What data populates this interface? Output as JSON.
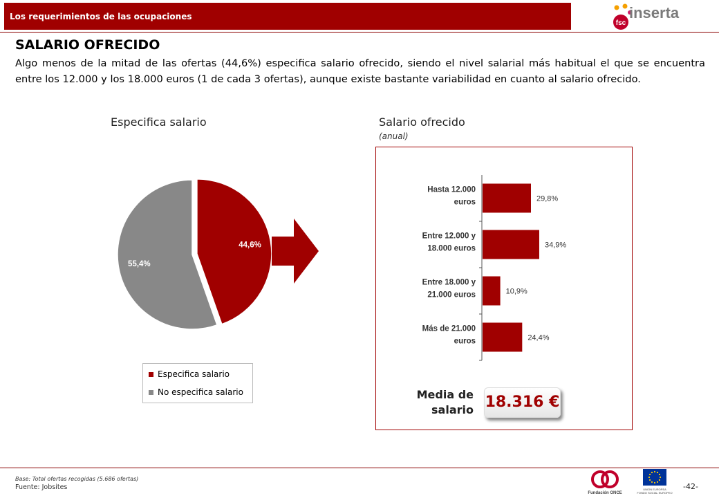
{
  "header": {
    "section_title": "Los requerimientos de las ocupaciones",
    "logo_text": "inserta",
    "logo_badge": "fsc"
  },
  "main": {
    "title": "SALARIO OFRECIDO",
    "paragraph": "Algo menos de la mitad de las ofertas (44,6%) especifica salario ofrecido, siendo el nivel salarial más habitual el que se encuentra entre los 12.000 y los 18.000 euros (1 de cada 3 ofertas), aunque existe bastante variabilidad en cuanto al salario ofrecido."
  },
  "summary": {
    "media_label_1": "Media de",
    "media_label_2": "salario",
    "media_value": "18.316 €"
  },
  "colors": {
    "primary": "#a00000",
    "grey": "#888888"
  },
  "chart_data": [
    {
      "type": "pie",
      "title": "Especifica salario",
      "slices": [
        {
          "label": "Especifica salario",
          "value": 44.6,
          "display": "44,6%",
          "color": "#a00000"
        },
        {
          "label": "No especifica salario",
          "value": 55.4,
          "display": "55,4%",
          "color": "#888888"
        }
      ],
      "legend_placement": "bottom"
    },
    {
      "type": "bar",
      "orientation": "horizontal",
      "title": "Salario ofrecido",
      "subtitle": "(anual)",
      "categories": [
        [
          "Hasta 12.000",
          "euros"
        ],
        [
          "Entre 12.000 y",
          "18.000 euros"
        ],
        [
          "Entre 18.000 y",
          "21.000 euros"
        ],
        [
          "Más de 21.000",
          "euros"
        ]
      ],
      "values": [
        29.8,
        34.9,
        10.9,
        24.4
      ],
      "value_labels": [
        "29,8%",
        "34,9%",
        "10,9%",
        "24,4%"
      ],
      "xlim": [
        0,
        100
      ],
      "grid": false
    }
  ],
  "footer": {
    "base": "Base: Total ofertas recogidas (5.686 ofertas)",
    "fuente": "Fuente: Jobsites",
    "page": "-42-",
    "fundacion_logo_text": "Fundación ONCE",
    "eu_logo_text_1": "UNIÓN EUROPEA",
    "eu_logo_text_2": "FONDO SOCIAL EUROPEO"
  }
}
